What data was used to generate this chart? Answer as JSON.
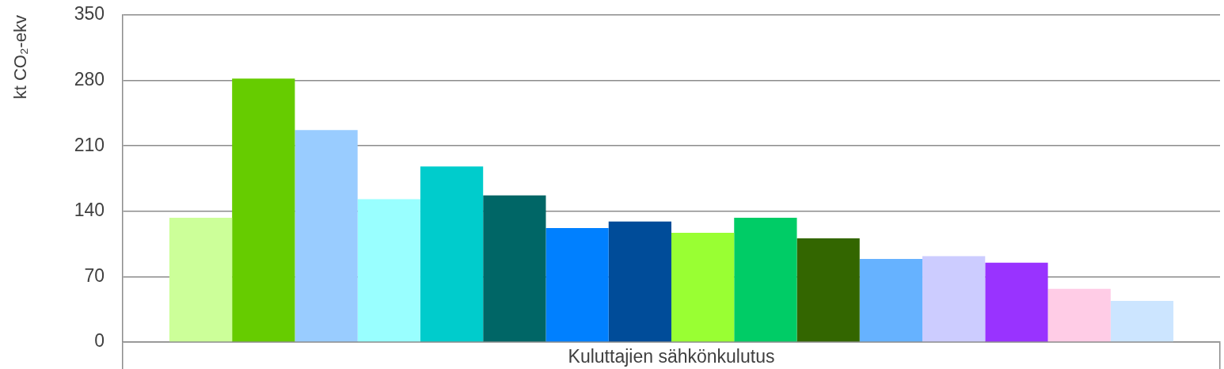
{
  "chart_data": {
    "type": "bar",
    "ylabel": "kt CO₂-ekv",
    "categories": [
      "Kuluttajien sähkönkulutus"
    ],
    "series": [
      {
        "color": "#ccff99",
        "values": [
          133
        ]
      },
      {
        "color": "#66cc00",
        "values": [
          282
        ]
      },
      {
        "color": "#99ccff",
        "values": [
          227
        ]
      },
      {
        "color": "#99ffff",
        "values": [
          153
        ]
      },
      {
        "color": "#00cccc",
        "values": [
          188
        ]
      },
      {
        "color": "#006666",
        "values": [
          157
        ]
      },
      {
        "color": "#0080ff",
        "values": [
          122
        ]
      },
      {
        "color": "#004c99",
        "values": [
          129
        ]
      },
      {
        "color": "#99ff33",
        "values": [
          117
        ]
      },
      {
        "color": "#00cc66",
        "values": [
          133
        ]
      },
      {
        "color": "#336600",
        "values": [
          111
        ]
      },
      {
        "color": "#66b2ff",
        "values": [
          89
        ]
      },
      {
        "color": "#ccccff",
        "values": [
          92
        ]
      },
      {
        "color": "#9933ff",
        "values": [
          85
        ]
      },
      {
        "color": "#ffcce6",
        "values": [
          57
        ]
      },
      {
        "color": "#cce5ff",
        "values": [
          44
        ]
      }
    ],
    "ylim": [
      0,
      350
    ],
    "yticks": [
      0,
      70,
      140,
      210,
      280,
      350
    ],
    "grid": "y"
  }
}
